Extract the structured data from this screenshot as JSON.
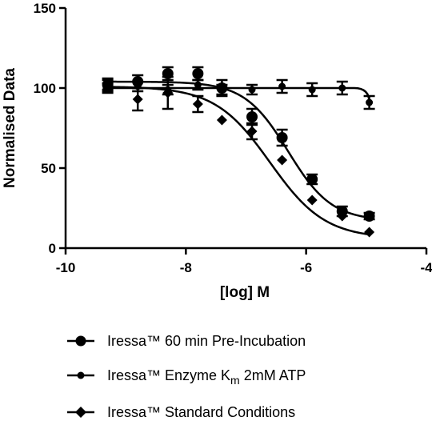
{
  "chart_data": {
    "type": "scatter",
    "xlabel": "[log] M",
    "ylabel": "Normalised Data",
    "xlim": [
      -10,
      -4
    ],
    "ylim": [
      0,
      150
    ],
    "x_ticks": [
      -10,
      -8,
      -6,
      -4
    ],
    "y_ticks": [
      0,
      50,
      100,
      150
    ],
    "x_tick_labels": [
      "-10",
      "-8",
      "-6",
      "-4"
    ],
    "y_tick_labels": [
      "0",
      "50",
      "100",
      "150"
    ],
    "grid": false,
    "legend_position": "bottom",
    "series": [
      {
        "name": "Iressa™ 60 min Pre-Incubation",
        "marker": "circle",
        "x": [
          -9.3,
          -8.8,
          -8.3,
          -7.8,
          -7.4,
          -6.9,
          -6.4,
          -5.9,
          -5.4,
          -4.95
        ],
        "y": [
          102,
          104,
          109,
          109,
          100,
          82,
          69,
          43,
          23,
          20
        ],
        "err": [
          3,
          4,
          4,
          4,
          5,
          5,
          5,
          3,
          3,
          2
        ],
        "fit": {
          "top": 104,
          "bottom": 17,
          "logIC50": -6.3,
          "hill": 1.2
        }
      },
      {
        "name_parts": [
          "Iressa™  Enzyme K",
          "m",
          " 2mM ATP"
        ],
        "marker": "small-circle",
        "x": [
          -9.3,
          -8.8,
          -8.3,
          -7.8,
          -7.4,
          -6.9,
          -6.4,
          -5.9,
          -5.4,
          -4.95
        ],
        "y": [
          102,
          101,
          99,
          102,
          99,
          99,
          101,
          99,
          100,
          91
        ],
        "err": [
          4,
          3,
          3,
          3,
          3,
          3,
          4,
          4,
          4,
          4
        ],
        "fit": {
          "type": "flat-drop",
          "level": 100,
          "drop_start": -5.2,
          "end_value": 91
        }
      },
      {
        "name": "Iressa™ Standard Conditions",
        "marker": "diamond",
        "x": [
          -9.3,
          -8.8,
          -8.3,
          -7.8,
          -7.4,
          -6.9,
          -6.4,
          -5.9,
          -5.4,
          -4.95
        ],
        "y": [
          100,
          93,
          97,
          90,
          80,
          73,
          55,
          30,
          20,
          10
        ],
        "err": [
          3,
          7,
          10,
          5,
          0,
          5,
          0,
          0,
          0,
          0
        ],
        "fit": {
          "top": 101,
          "bottom": 6,
          "logIC50": -6.6,
          "hill": 0.95
        }
      }
    ]
  }
}
